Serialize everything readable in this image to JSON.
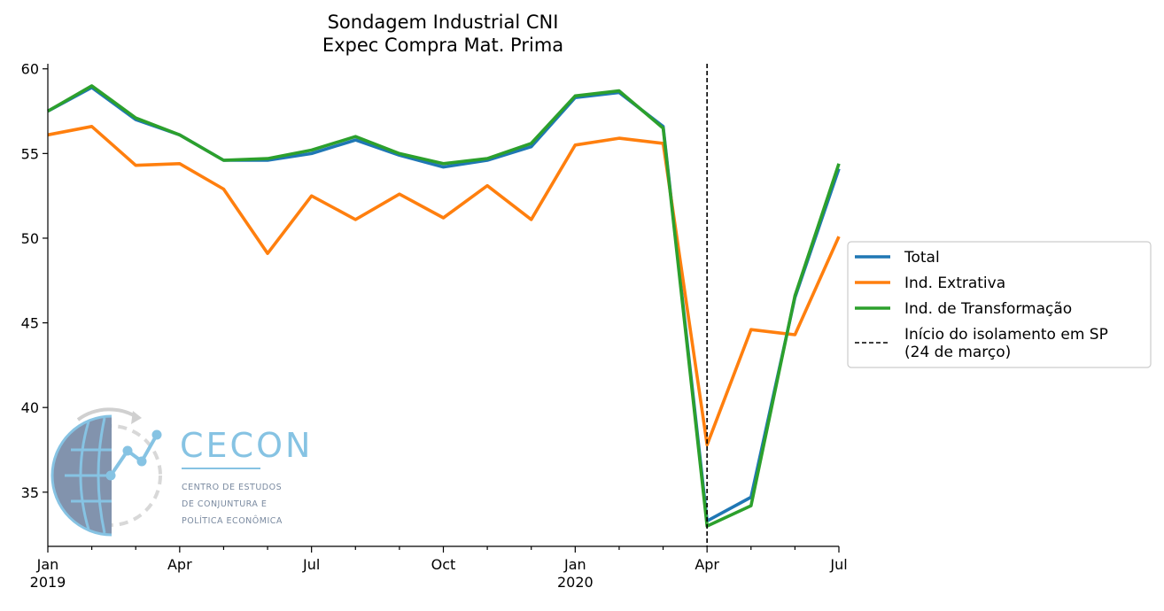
{
  "chart_data": {
    "type": "line",
    "title": [
      "Sondagem Industrial CNI",
      "Expec Compra Mat. Prima"
    ],
    "xlabel": "",
    "ylabel": "",
    "x": [
      "2019-01",
      "2019-02",
      "2019-03",
      "2019-04",
      "2019-05",
      "2019-06",
      "2019-07",
      "2019-08",
      "2019-09",
      "2019-10",
      "2019-11",
      "2019-12",
      "2020-01",
      "2020-02",
      "2020-03",
      "2020-04",
      "2020-05",
      "2020-06",
      "2020-07"
    ],
    "xticks": [
      {
        "x": "2019-01",
        "label": [
          "Jan",
          "2019"
        ]
      },
      {
        "x": "2019-04",
        "label": [
          "Apr"
        ]
      },
      {
        "x": "2019-07",
        "label": [
          "Jul"
        ]
      },
      {
        "x": "2019-10",
        "label": [
          "Oct"
        ]
      },
      {
        "x": "2020-01",
        "label": [
          "Jan",
          "2020"
        ]
      },
      {
        "x": "2020-04",
        "label": [
          "Apr"
        ]
      },
      {
        "x": "2020-07",
        "label": [
          "Jul"
        ]
      }
    ],
    "yticks": [
      35,
      40,
      45,
      50,
      55,
      60
    ],
    "ylim": [
      31.8,
      60.3
    ],
    "series": [
      {
        "name": "Total",
        "color": "#1f77b4",
        "values": [
          57.5,
          58.9,
          57.0,
          56.1,
          54.6,
          54.6,
          55.0,
          55.8,
          54.9,
          54.2,
          54.6,
          55.4,
          58.3,
          58.6,
          56.6,
          33.3,
          34.7,
          46.5,
          54.1
        ]
      },
      {
        "name": "Ind. Extrativa",
        "color": "#ff7f0e",
        "values": [
          56.1,
          56.6,
          54.3,
          54.4,
          52.9,
          49.1,
          52.5,
          51.1,
          52.6,
          51.2,
          53.1,
          51.1,
          55.5,
          55.9,
          55.6,
          37.8,
          44.6,
          44.3,
          50.1
        ]
      },
      {
        "name": "Ind. de Transformação",
        "color": "#2ca02c",
        "values": [
          57.5,
          59.0,
          57.1,
          56.1,
          54.6,
          54.7,
          55.2,
          56.0,
          55.0,
          54.4,
          54.7,
          55.6,
          58.4,
          58.7,
          56.5,
          33.0,
          34.2,
          46.6,
          54.4
        ]
      }
    ],
    "vline": {
      "x": "2020-04",
      "name": [
        "Início do isolamento em SP",
        "(24 de março)"
      ],
      "style": "dashed",
      "color": "#000000"
    },
    "legend": "right",
    "grid": false
  },
  "logo": {
    "name": "CECON",
    "subtitle": [
      "CENTRO DE ESTUDOS",
      "DE CONJUNTURA E",
      "POLÍTICA ECONÔMICA"
    ]
  }
}
